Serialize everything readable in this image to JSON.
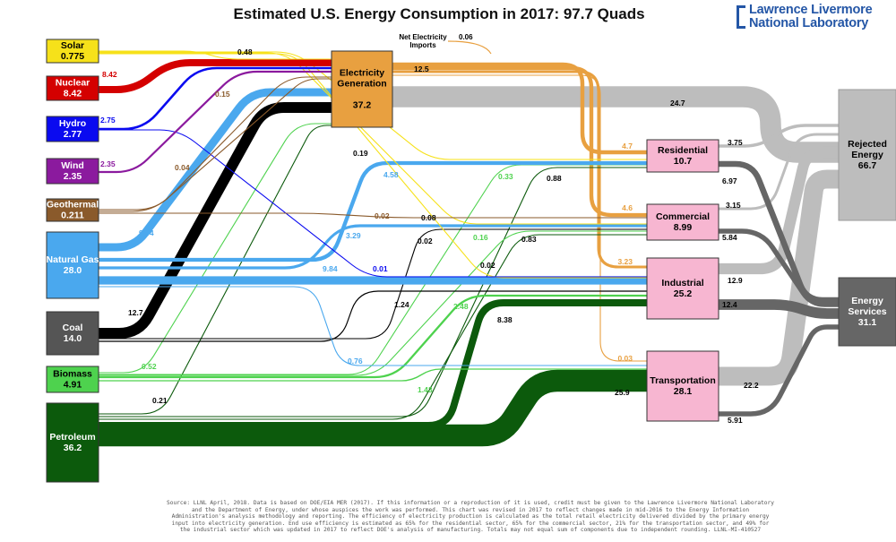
{
  "title": "Estimated U.S. Energy Consumption in 2017: 97.7 Quads",
  "logo": {
    "line1": "Lawrence Livermore",
    "line2": "National Laboratory"
  },
  "footnote": [
    "Source: LLNL April, 2018. Data is based on DOE/EIA MER (2017). If this information or a reproduction of it is used, credit must be given to the Lawrence Livermore National Laboratory",
    "and the Department of Energy, under whose auspices the work was performed. This chart was revised in 2017 to reflect changes made in mid-2016 to the Energy Information",
    "Administration's analysis methodology and reporting.  The efficiency of electricity production is calculated as the total retail electricity delivered divided by the primary energy",
    "input into electricity generation.  End use efficiency is estimated as 65% for the residential sector, 65% for the commercial sector, 21% for the transportation sector, and 49% for",
    "the industrial sector which was updated in 2017 to reflect DOE's analysis of manufacturing.  Totals may not equal sum of components due to independent rounding.  LLNL-MI-410527"
  ],
  "colors": {
    "solar": "#f6e11a",
    "nuclear": "#d40000",
    "hydro": "#0a0af0",
    "wind": "#8b1a9e",
    "geothermal": "#8a5a2b",
    "gas": "#4aa8ee",
    "coal": "#000000",
    "biomass": "#4ed24e",
    "petroleum": "#0c5a0c",
    "electricity": "#e8a040",
    "rejected": "#bdbdbd",
    "services": "#666666",
    "sector_fill": "#f7b6d1",
    "elec_fill": "#e8a040"
  },
  "sources": [
    {
      "key": "solar",
      "label": "Solar",
      "value": "0.775"
    },
    {
      "key": "nuclear",
      "label": "Nuclear",
      "value": "8.42"
    },
    {
      "key": "hydro",
      "label": "Hydro",
      "value": "2.77"
    },
    {
      "key": "wind",
      "label": "Wind",
      "value": "2.35"
    },
    {
      "key": "geothermal",
      "label": "Geothermal",
      "value": "0.211"
    },
    {
      "key": "gas",
      "label": "Natural Gas",
      "value": "28.0"
    },
    {
      "key": "coal",
      "label": "Coal",
      "value": "14.0"
    },
    {
      "key": "biomass",
      "label": "Biomass",
      "value": "4.91"
    },
    {
      "key": "petroleum",
      "label": "Petroleum",
      "value": "36.2"
    }
  ],
  "electricity": {
    "label1": "Electricity",
    "label2": "Generation",
    "value": "37.2"
  },
  "net_imports": {
    "label1": "Net Electricity",
    "label2": "Imports",
    "value": "0.06"
  },
  "sectors": [
    {
      "key": "residential",
      "label": "Residential",
      "value": "10.7"
    },
    {
      "key": "commercial",
      "label": "Commercial",
      "value": "8.99"
    },
    {
      "key": "industrial",
      "label": "Industrial",
      "value": "25.2"
    },
    {
      "key": "transportation",
      "label": "Transportation",
      "value": "28.1"
    }
  ],
  "outputs": {
    "rejected": {
      "label1": "Rejected",
      "label2": "Energy",
      "value": "66.7"
    },
    "services": {
      "label1": "Energy",
      "label2": "Services",
      "value": "31.1"
    }
  },
  "flows": [
    {
      "from": "solar",
      "to": "electricity",
      "value": "0.48"
    },
    {
      "from": "nuclear",
      "to": "electricity",
      "value": "8.42"
    },
    {
      "from": "hydro",
      "to": "electricity",
      "value": "2.75"
    },
    {
      "from": "wind",
      "to": "electricity",
      "value": "2.35"
    },
    {
      "from": "geothermal",
      "to": "electricity",
      "value": "0.15"
    },
    {
      "from": "geothermal",
      "to": "residential",
      "value": "0.04"
    },
    {
      "from": "geothermal",
      "to": "commercial",
      "value": "0.02"
    },
    {
      "from": "solar",
      "to": "residential",
      "value": "0.19"
    },
    {
      "from": "solar",
      "to": "commercial",
      "value": "0.08"
    },
    {
      "from": "solar",
      "to": "industrial",
      "value": "0.02"
    },
    {
      "from": "hydro",
      "to": "industrial",
      "value": "0.01"
    },
    {
      "from": "gas",
      "to": "electricity",
      "value": "9.54"
    },
    {
      "from": "gas",
      "to": "residential",
      "value": "4.58"
    },
    {
      "from": "gas",
      "to": "commercial",
      "value": "3.29"
    },
    {
      "from": "gas",
      "to": "industrial",
      "value": "9.84"
    },
    {
      "from": "gas",
      "to": "transportation",
      "value": "0.76"
    },
    {
      "from": "coal",
      "to": "electricity",
      "value": "12.7"
    },
    {
      "from": "coal",
      "to": "commercial",
      "value": "0.02"
    },
    {
      "from": "coal",
      "to": "industrial",
      "value": "1.24"
    },
    {
      "from": "biomass",
      "to": "electricity",
      "value": "0.52"
    },
    {
      "from": "biomass",
      "to": "residential",
      "value": "0.33"
    },
    {
      "from": "biomass",
      "to": "commercial",
      "value": "0.16"
    },
    {
      "from": "biomass",
      "to": "industrial",
      "value": "2.48"
    },
    {
      "from": "biomass",
      "to": "transportation",
      "value": "1.43"
    },
    {
      "from": "petroleum",
      "to": "electricity",
      "value": "0.21"
    },
    {
      "from": "petroleum",
      "to": "residential",
      "value": "0.88"
    },
    {
      "from": "petroleum",
      "to": "commercial",
      "value": "0.83"
    },
    {
      "from": "petroleum",
      "to": "industrial",
      "value": "8.38"
    },
    {
      "from": "petroleum",
      "to": "transportation",
      "value": "25.9"
    },
    {
      "from": "electricity",
      "to": "delivered",
      "value": "12.5"
    },
    {
      "from": "electricity",
      "to": "rejected",
      "value": "24.7"
    },
    {
      "from": "electricity",
      "to": "residential",
      "value": "4.7"
    },
    {
      "from": "electricity",
      "to": "commercial",
      "value": "4.6"
    },
    {
      "from": "electricity",
      "to": "industrial",
      "value": "3.23"
    },
    {
      "from": "electricity",
      "to": "transportation",
      "value": "0.03"
    },
    {
      "from": "residential",
      "to": "rejected",
      "value": "3.75"
    },
    {
      "from": "residential",
      "to": "services",
      "value": "6.97"
    },
    {
      "from": "commercial",
      "to": "rejected",
      "value": "3.15"
    },
    {
      "from": "commercial",
      "to": "services",
      "value": "5.84"
    },
    {
      "from": "industrial",
      "to": "rejected",
      "value": "12.9"
    },
    {
      "from": "industrial",
      "to": "services",
      "value": "12.4"
    },
    {
      "from": "transportation",
      "to": "rejected",
      "value": "22.2"
    },
    {
      "from": "transportation",
      "to": "services",
      "value": "5.91"
    }
  ]
}
